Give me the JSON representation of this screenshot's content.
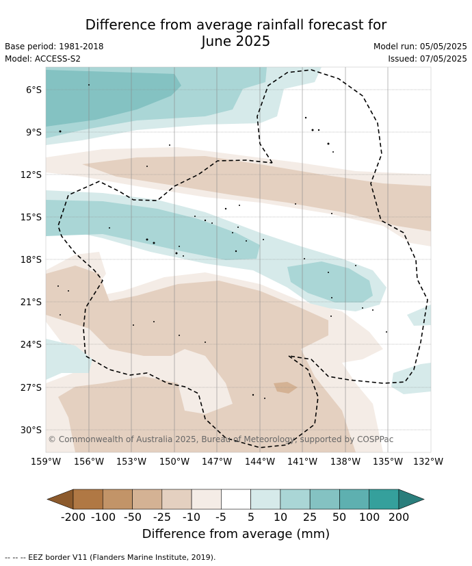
{
  "title_line1": "Difference from average rainfall forecast for",
  "title_line2": "June 2025",
  "meta_left": {
    "base_period": "Base period: 1981-2018",
    "model": "Model: ACCESS-S2"
  },
  "meta_right": {
    "model_run": "Model run: 05/05/2025",
    "issued": "Issued: 07/05/2025"
  },
  "lat_labels": [
    "6°S",
    "9°S",
    "12°S",
    "15°S",
    "18°S",
    "21°S",
    "24°S",
    "27°S",
    "30°S"
  ],
  "lon_labels": [
    "159°W",
    "156°W",
    "153°W",
    "150°W",
    "147°W",
    "144°W",
    "141°W",
    "138°W",
    "135°W",
    "132°W"
  ],
  "copyright": "© Commonwealth of Australia 2025, Bureau of Meteorology, supported by COSPPac",
  "colorbar": {
    "ticks": [
      "-200",
      "-100",
      "-50",
      "-25",
      "-10",
      "-5",
      "5",
      "10",
      "25",
      "50",
      "100",
      "200"
    ],
    "colors": [
      "#8c5a2c",
      "#b07844",
      "#c29468",
      "#d4b294",
      "#e4d0c0",
      "#f4ece6",
      "#ffffff",
      "#d6eaea",
      "#aad6d6",
      "#84c2c2",
      "#5eb0b0",
      "#35a09c",
      "#2a7e7c"
    ],
    "title": "Difference from average (mm)"
  },
  "footnote": "-- -- -- EEZ border V11 (Flanders Marine Institute, 2019)."
}
